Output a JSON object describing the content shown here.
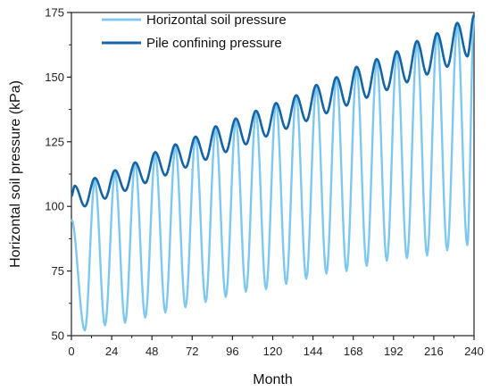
{
  "chart_data": {
    "type": "line",
    "title": "",
    "xlabel": "Month",
    "ylabel": "Horizontal soil pressure (kPa)",
    "xlim": [
      0,
      240
    ],
    "ylim": [
      50,
      175
    ],
    "xticks": [
      0,
      24,
      48,
      72,
      96,
      120,
      144,
      168,
      192,
      216,
      240
    ],
    "yticks": [
      50,
      75,
      100,
      125,
      150,
      175
    ],
    "grid": false,
    "legend_position": "top-left",
    "series": [
      {
        "name": "Horizontal soil pressure",
        "color": "#7EC8F0",
        "period_months": 12,
        "x": [
          0,
          8,
          14,
          20,
          26,
          32,
          38,
          44,
          50,
          56,
          62,
          68,
          74,
          80,
          86,
          92,
          98,
          104,
          110,
          116,
          122,
          128,
          134,
          140,
          146,
          152,
          158,
          164,
          170,
          176,
          182,
          188,
          194,
          200,
          206,
          212,
          218,
          224,
          230,
          236,
          240
        ],
        "values": [
          95,
          52,
          110,
          54,
          113,
          55,
          117,
          57,
          120,
          59,
          123,
          61,
          127,
          63,
          130,
          65,
          133,
          67,
          136,
          68,
          140,
          70,
          143,
          72,
          146,
          74,
          150,
          75,
          153,
          77,
          156,
          79,
          160,
          80,
          163,
          81,
          167,
          83,
          170,
          85,
          173
        ]
      },
      {
        "name": "Pile confining pressure",
        "color": "#1565A6",
        "period_months": 12,
        "x": [
          0,
          2,
          8,
          14,
          20,
          26,
          32,
          38,
          44,
          50,
          56,
          62,
          68,
          74,
          80,
          86,
          92,
          98,
          104,
          110,
          116,
          122,
          128,
          134,
          140,
          146,
          152,
          158,
          164,
          170,
          176,
          182,
          188,
          194,
          200,
          206,
          212,
          218,
          224,
          230,
          236,
          240
        ],
        "values": [
          104,
          108,
          100,
          111,
          103,
          114,
          106,
          117,
          109,
          121,
          112,
          124,
          115,
          127,
          118,
          131,
          121,
          134,
          124,
          137,
          127,
          140,
          130,
          143,
          133,
          147,
          136,
          150,
          139,
          154,
          142,
          157,
          145,
          160,
          148,
          164,
          151,
          167,
          154,
          171,
          158,
          174
        ]
      }
    ]
  }
}
